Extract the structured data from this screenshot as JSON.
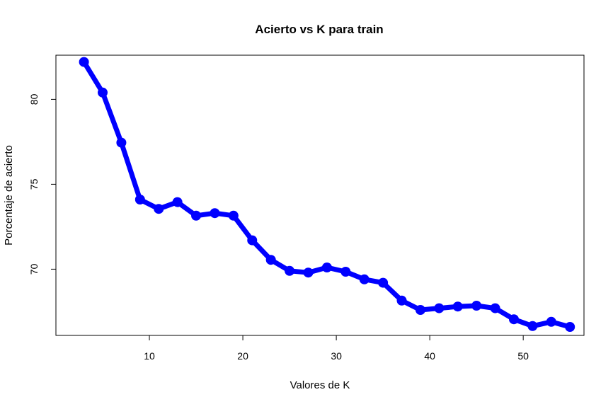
{
  "chart_data": {
    "type": "line",
    "title": "Acierto vs K para train",
    "xlabel": "Valores de K",
    "ylabel": "Porcentaje de acierto",
    "xlim": [
      0,
      56.5
    ],
    "ylim": [
      66.1,
      82.6
    ],
    "x_ticks": [
      10,
      20,
      30,
      40,
      50
    ],
    "y_ticks": [
      70,
      75,
      80
    ],
    "grid": false,
    "legend": "none",
    "series": [
      {
        "color": "#0000ff",
        "x": [
          3,
          5,
          7,
          9,
          11,
          13,
          15,
          17,
          19,
          21,
          23,
          25,
          27,
          29,
          31,
          33,
          35,
          37,
          39,
          41,
          43,
          45,
          47,
          49,
          51,
          53,
          55
        ],
        "values": [
          82.2,
          80.4,
          77.45,
          74.1,
          73.55,
          73.95,
          73.15,
          73.3,
          73.15,
          71.7,
          70.55,
          69.9,
          69.8,
          70.1,
          69.85,
          69.4,
          69.2,
          68.15,
          67.6,
          67.7,
          67.8,
          67.85,
          67.7,
          67.05,
          66.65,
          66.9,
          66.6
        ]
      }
    ]
  }
}
